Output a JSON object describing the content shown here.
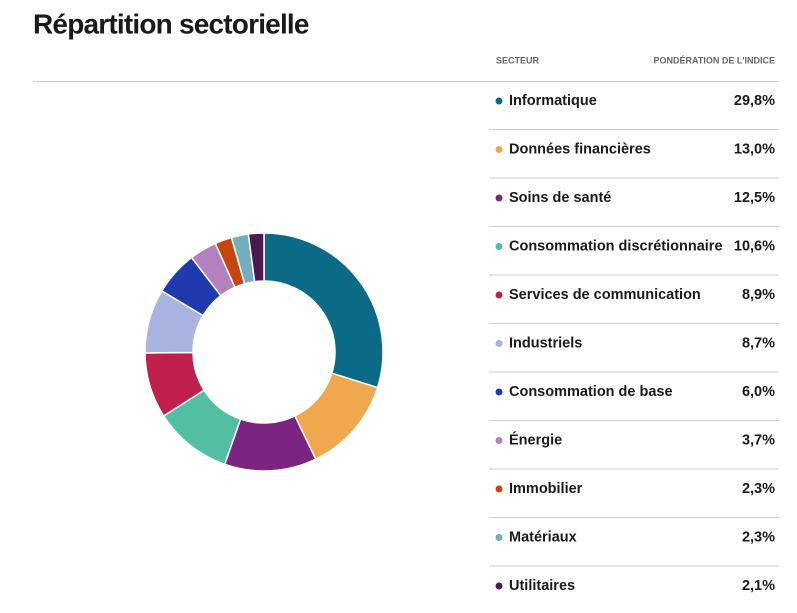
{
  "chart_data": {
    "type": "pie",
    "donut": true,
    "title": "Répartition sectorielle",
    "legend_headers": [
      "SECTEUR",
      "PONDÉRATION DE L'INDICE"
    ],
    "categories": [
      "Informatique",
      "Données financières",
      "Soins de santé",
      "Consommation discrétionnaire",
      "Services de communication",
      "Industriels",
      "Consommation de base",
      "Énergie",
      "Immobilier",
      "Matériaux",
      "Utilitaires"
    ],
    "values": [
      29.8,
      13.0,
      12.5,
      10.6,
      8.9,
      8.7,
      6.0,
      3.7,
      2.3,
      2.3,
      2.1
    ],
    "value_labels": [
      "29,8%",
      "13,0%",
      "12,5%",
      "10,6%",
      "8,9%",
      "8,7%",
      "6,0%",
      "3,7%",
      "2,3%",
      "2,3%",
      "2,1%"
    ],
    "colors": [
      "#0b6b87",
      "#f0a84e",
      "#7b2581",
      "#52bfa2",
      "#c0204e",
      "#a9b4e0",
      "#1e3aad",
      "#b580be",
      "#c84410",
      "#73aebf",
      "#4a1a4e"
    ]
  }
}
